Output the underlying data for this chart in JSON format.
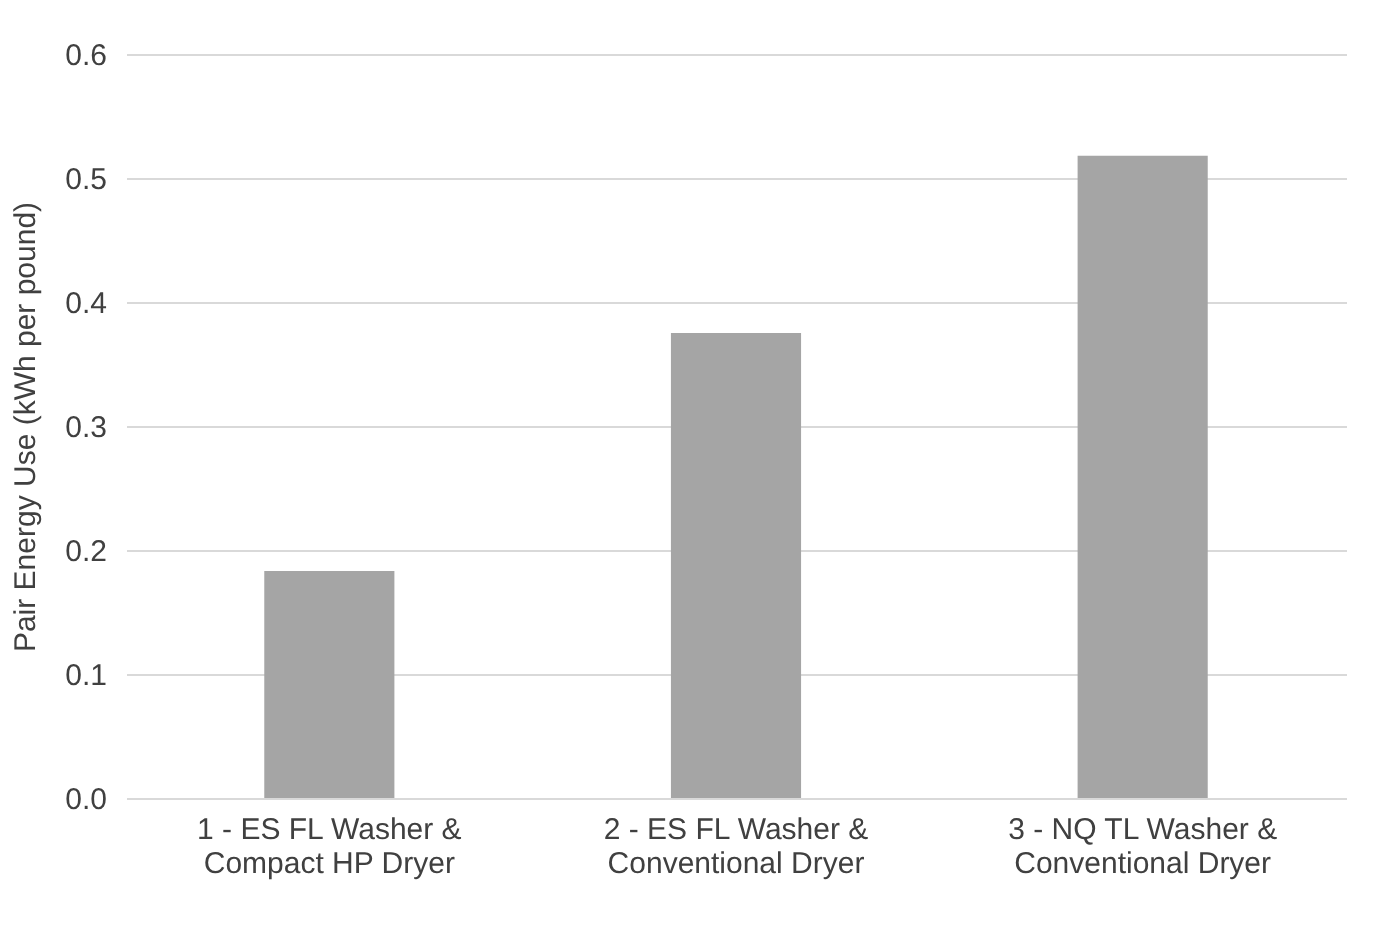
{
  "chart_data": {
    "type": "bar",
    "ylabel": "Pair Energy Use (kWh per pound)",
    "categories": [
      "1 - ES FL Washer & Compact HP Dryer",
      "2 - ES FL Washer & Conventional Dryer",
      "3 - NQ TL Washer & Conventional Dryer"
    ],
    "values": [
      0.183,
      0.375,
      0.518
    ],
    "color": "#a5a5a5",
    "ylim": [
      0,
      0.6
    ],
    "yticks": [
      {
        "value": 0,
        "label": "0.0"
      },
      {
        "value": 0.1,
        "label": "0.1"
      },
      {
        "value": 0.2,
        "label": "0.2"
      },
      {
        "value": 0.3,
        "label": "0.3"
      },
      {
        "value": 0.4,
        "label": "0.4"
      },
      {
        "value": 0.5,
        "label": "0.5"
      },
      {
        "value": 0.6,
        "label": "0.6"
      }
    ],
    "grid": true
  }
}
